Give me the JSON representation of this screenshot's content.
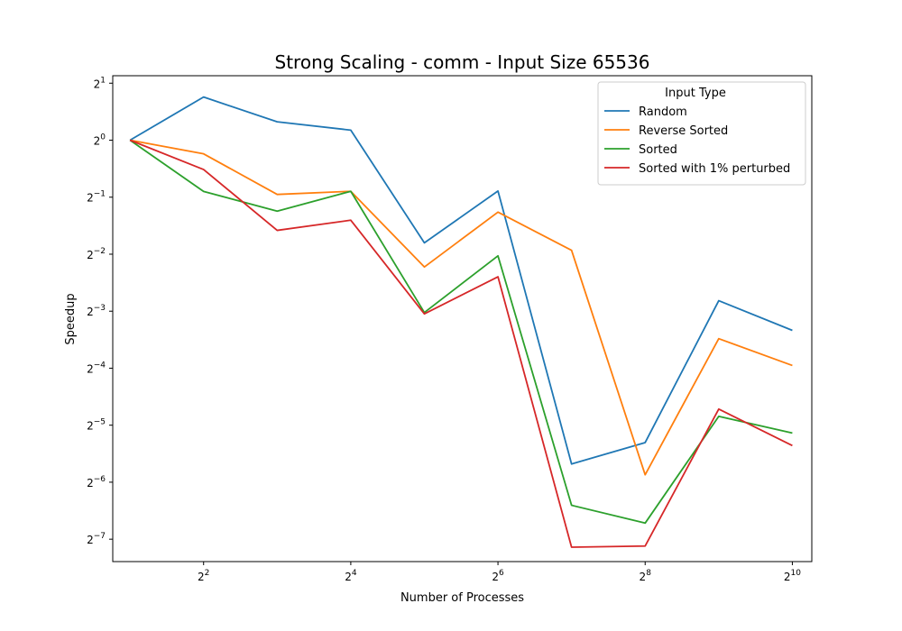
{
  "chart_data": {
    "type": "line",
    "title": "Strong Scaling - comm - Input Size 65536",
    "xlabel": "Number of Processes",
    "ylabel": "Speedup",
    "x_scale": "log2",
    "y_scale": "log2",
    "xlim": [
      1.7,
      1230
    ],
    "ylim": [
      0.00595,
      2.19
    ],
    "x_ticks": [
      4,
      16,
      64,
      256,
      1024
    ],
    "x_tick_labels": [
      {
        "base": "2",
        "exp": "2"
      },
      {
        "base": "2",
        "exp": "4"
      },
      {
        "base": "2",
        "exp": "6"
      },
      {
        "base": "2",
        "exp": "8"
      },
      {
        "base": "2",
        "exp": "10"
      }
    ],
    "y_ticks": [
      0.0078125,
      0.015625,
      0.03125,
      0.0625,
      0.125,
      0.25,
      0.5,
      1,
      2
    ],
    "y_tick_labels": [
      {
        "base": "2",
        "exp": "−7"
      },
      {
        "base": "2",
        "exp": "−6"
      },
      {
        "base": "2",
        "exp": "−5"
      },
      {
        "base": "2",
        "exp": "−4"
      },
      {
        "base": "2",
        "exp": "−3"
      },
      {
        "base": "2",
        "exp": "−2"
      },
      {
        "base": "2",
        "exp": "−1"
      },
      {
        "base": "2",
        "exp": "0"
      },
      {
        "base": "2",
        "exp": "1"
      }
    ],
    "x": [
      2,
      4,
      8,
      16,
      32,
      64,
      128,
      256,
      512,
      1024
    ],
    "series": [
      {
        "name": "Random",
        "color": "#1f77b4",
        "values": [
          1.0,
          1.69,
          1.25,
          1.13,
          0.287,
          0.539,
          0.0195,
          0.0253,
          0.142,
          0.099
        ]
      },
      {
        "name": "Reverse Sorted",
        "color": "#ff7f0e",
        "values": [
          1.0,
          0.847,
          0.517,
          0.537,
          0.214,
          0.417,
          0.262,
          0.0171,
          0.0895,
          0.0646
        ]
      },
      {
        "name": "Sorted",
        "color": "#2ca02c",
        "values": [
          1.0,
          0.536,
          0.422,
          0.537,
          0.123,
          0.245,
          0.0118,
          0.0095,
          0.0348,
          0.0284
        ]
      },
      {
        "name": "Sorted with 1% perturbed",
        "color": "#d62728",
        "values": [
          1.0,
          0.7,
          0.334,
          0.378,
          0.121,
          0.19,
          0.00709,
          0.00719,
          0.038,
          0.0244
        ]
      }
    ],
    "legend": {
      "title": "Input Type",
      "placement": "top-right"
    },
    "grid": false
  }
}
